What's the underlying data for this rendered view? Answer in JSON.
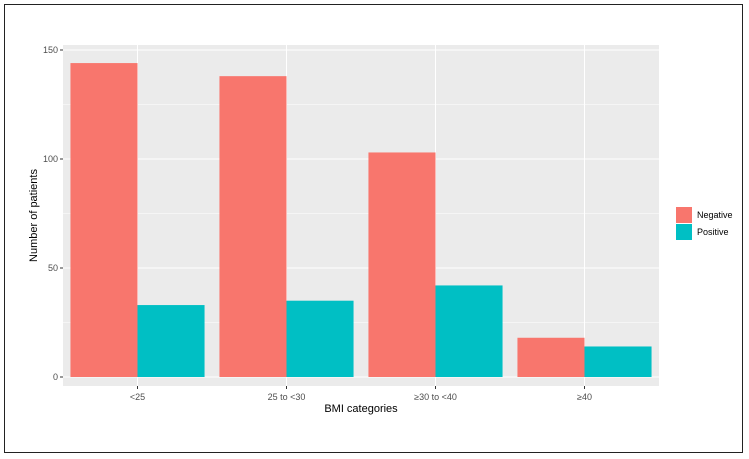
{
  "chart_data": {
    "type": "bar",
    "categories": [
      "<25",
      "25 to <30",
      "≥30 to <40",
      "≥40"
    ],
    "series": [
      {
        "name": "Negative",
        "color": "#F8766D",
        "values": [
          144,
          138,
          103,
          18
        ]
      },
      {
        "name": "Positive",
        "color": "#00BFC4",
        "values": [
          33,
          35,
          42,
          14
        ]
      }
    ],
    "xlabel": "BMI categories",
    "ylabel": "Number of patients",
    "ylim": [
      0,
      150
    ],
    "yticks": [
      0,
      50,
      100,
      150
    ],
    "grid": true,
    "legend_position": "right",
    "panel_background": "#EBEBEB",
    "grid_color": "#FFFFFF"
  }
}
